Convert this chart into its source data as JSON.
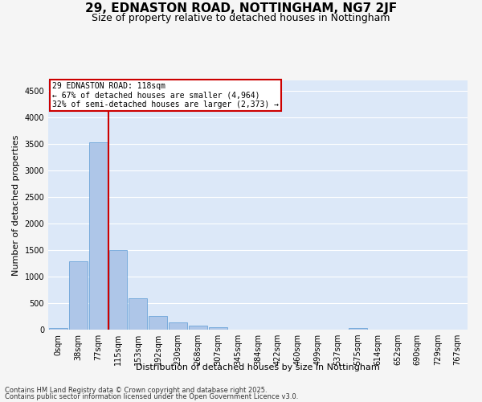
{
  "title": "29, EDNASTON ROAD, NOTTINGHAM, NG7 2JF",
  "subtitle": "Size of property relative to detached houses in Nottingham",
  "xlabel": "Distribution of detached houses by size in Nottingham",
  "ylabel": "Number of detached properties",
  "bar_labels": [
    "0sqm",
    "38sqm",
    "77sqm",
    "115sqm",
    "153sqm",
    "192sqm",
    "230sqm",
    "268sqm",
    "307sqm",
    "345sqm",
    "384sqm",
    "422sqm",
    "460sqm",
    "499sqm",
    "537sqm",
    "575sqm",
    "614sqm",
    "652sqm",
    "690sqm",
    "729sqm",
    "767sqm"
  ],
  "bar_values": [
    25,
    1290,
    3530,
    1500,
    590,
    265,
    140,
    80,
    40,
    5,
    0,
    0,
    0,
    0,
    0,
    25,
    0,
    0,
    0,
    0,
    0
  ],
  "bar_color": "#aec6e8",
  "bar_edge_color": "#5b9bd5",
  "vline_color": "#cc0000",
  "annotation_text": "29 EDNASTON ROAD: 118sqm\n← 67% of detached houses are smaller (4,964)\n32% of semi-detached houses are larger (2,373) →",
  "annotation_box_color": "#cc0000",
  "ylim": [
    0,
    4700
  ],
  "yticks": [
    0,
    500,
    1000,
    1500,
    2000,
    2500,
    3000,
    3500,
    4000,
    4500
  ],
  "footnote1": "Contains HM Land Registry data © Crown copyright and database right 2025.",
  "footnote2": "Contains public sector information licensed under the Open Government Licence v3.0.",
  "fig_bg_color": "#f5f5f5",
  "bg_color": "#dce8f8",
  "grid_color": "#ffffff",
  "title_fontsize": 11,
  "subtitle_fontsize": 9,
  "axis_label_fontsize": 8,
  "tick_fontsize": 7,
  "footnote_fontsize": 6
}
